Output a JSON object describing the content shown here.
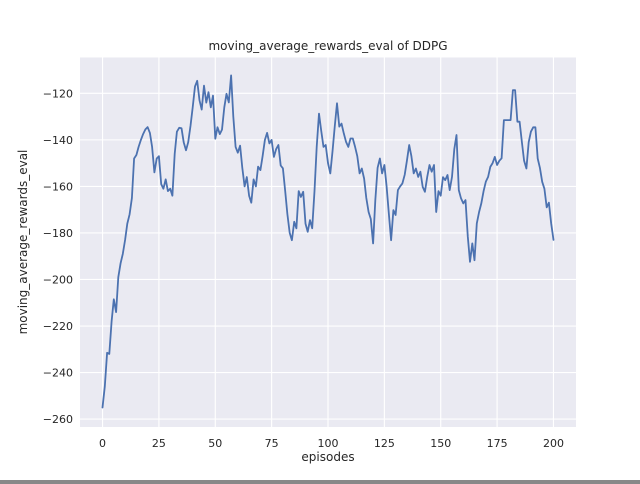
{
  "figure": {
    "background": "#ffffff"
  },
  "chart_data": {
    "type": "line",
    "title": "moving_average_rewards_eval of DDPG",
    "xlabel": "episodes",
    "ylabel": "moving_average_rewards_eval",
    "x_ticks": [
      0,
      25,
      50,
      75,
      100,
      125,
      150,
      175,
      200
    ],
    "y_ticks": [
      -260,
      -240,
      -220,
      -200,
      -180,
      -160,
      -140,
      -120
    ],
    "xlim": [
      -10,
      210
    ],
    "ylim": [
      -263.4,
      -104.6
    ],
    "grid": true,
    "style": {
      "line_color": "#4c72b0",
      "plot_background": "#eaeaf2",
      "grid_color": "#ffffff",
      "text_color": "#262626"
    },
    "series": [
      {
        "name": "moving_average_rewards_eval",
        "x_start": 0,
        "x_step": 1,
        "values": [
          -255,
          -246,
          -231.5,
          -232,
          -218,
          -208.5,
          -214,
          -199,
          -193,
          -189,
          -183,
          -176,
          -172,
          -165,
          -148,
          -146.5,
          -143,
          -140,
          -137.5,
          -135.5,
          -134.5,
          -137,
          -143,
          -154,
          -148,
          -147,
          -159,
          -161,
          -157,
          -162,
          -161,
          -164,
          -146,
          -136.5,
          -134.8,
          -135,
          -141,
          -144.5,
          -141,
          -134,
          -126,
          -117,
          -114.6,
          -123,
          -127,
          -116.7,
          -124,
          -119.5,
          -126,
          -121,
          -139.5,
          -134.6,
          -137.5,
          -135.6,
          -126,
          -120.2,
          -123.9,
          -112.3,
          -130,
          -143,
          -145.5,
          -142.5,
          -152,
          -160,
          -156,
          -164,
          -167,
          -157,
          -160,
          -151.5,
          -153,
          -147,
          -140,
          -137,
          -141.5,
          -140,
          -147.3,
          -144,
          -142.2,
          -151,
          -152.2,
          -162,
          -172,
          -180,
          -183.1,
          -175.2,
          -178,
          -162,
          -164.5,
          -162.3,
          -176,
          -179.5,
          -174.5,
          -178,
          -162,
          -143,
          -128.7,
          -136,
          -143,
          -142.2,
          -150,
          -154.4,
          -145,
          -134,
          -124.3,
          -134.3,
          -133,
          -137.2,
          -140.8,
          -143,
          -139.4,
          -139.4,
          -143,
          -147,
          -154.4,
          -152.3,
          -156.6,
          -165,
          -171,
          -174,
          -184.5,
          -166,
          -152,
          -148,
          -154.4,
          -150.8,
          -160,
          -172,
          -183.1,
          -170.2,
          -172.3,
          -161.6,
          -160,
          -158.7,
          -155,
          -149,
          -142.2,
          -147,
          -154.4,
          -152.3,
          -155.9,
          -153.7,
          -160.2,
          -162.3,
          -156,
          -150.8,
          -153.7,
          -150.8,
          -171,
          -162,
          -164,
          -156,
          -157.3,
          -155.1,
          -161.6,
          -155.9,
          -144,
          -137.9,
          -161.6,
          -165.1,
          -167.3,
          -165.9,
          -181.6,
          -192.4,
          -184.5,
          -191.7,
          -175.9,
          -171,
          -167.3,
          -162,
          -158,
          -155.9,
          -151.6,
          -150,
          -147.3,
          -150.8,
          -149,
          -147.9,
          -131.5,
          -131.5,
          -131.5,
          -131.5,
          -118.6,
          -118.6,
          -132.2,
          -132.2,
          -141,
          -149,
          -152.3,
          -141,
          -136.5,
          -134.6,
          -134.6,
          -148,
          -152,
          -158,
          -161,
          -169,
          -167,
          -176,
          -183
        ]
      }
    ]
  }
}
